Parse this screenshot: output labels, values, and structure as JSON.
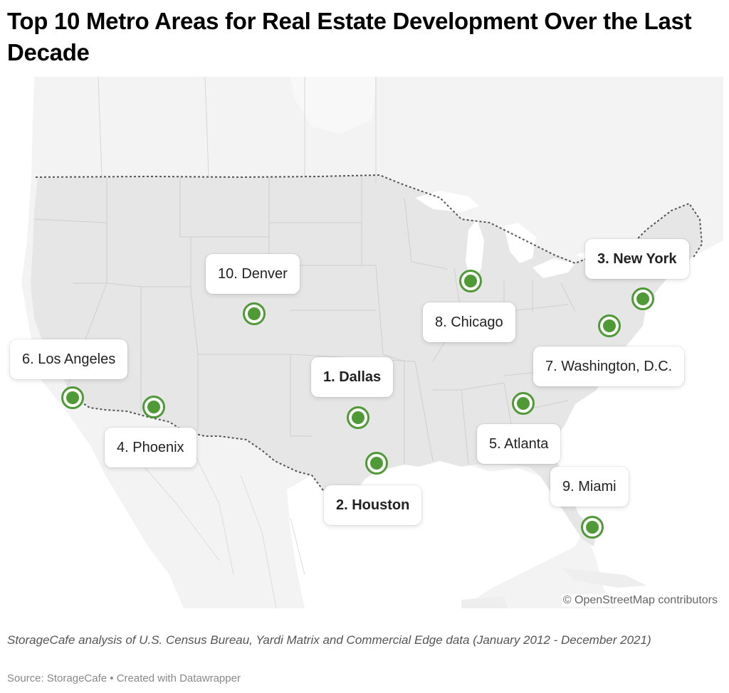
{
  "title": "Top 10 Metro Areas for Real Estate Development Over the Last Decade",
  "notes": "StorageCafe analysis of U.S. Census Bureau, Yardi Matrix and Commercial Edge data (January 2012 - December 2021)",
  "source": {
    "prefix": "Source: ",
    "name": "StorageCafe",
    "separator": " • ",
    "created": "Created with Datawrapper"
  },
  "attribution": "© OpenStreetMap contributors",
  "colors": {
    "marker": "#4e9a35",
    "land_us": "#e6e6e6",
    "land_other": "#f2f2f2",
    "water": "#ffffff",
    "border": "#555555"
  },
  "markers": [
    {
      "rank": 1,
      "label": "1. Dallas",
      "bold": true
    },
    {
      "rank": 2,
      "label": "2. Houston",
      "bold": true
    },
    {
      "rank": 3,
      "label": "3. New York",
      "bold": true
    },
    {
      "rank": 4,
      "label": "4. Phoenix",
      "bold": false
    },
    {
      "rank": 5,
      "label": "5. Atlanta",
      "bold": false
    },
    {
      "rank": 6,
      "label": "6. Los Angeles",
      "bold": false
    },
    {
      "rank": 7,
      "label": "7. Washington, D.C.",
      "bold": false
    },
    {
      "rank": 8,
      "label": "8. Chicago",
      "bold": false
    },
    {
      "rank": 9,
      "label": "9. Miami",
      "bold": false
    },
    {
      "rank": 10,
      "label": "10. Denver",
      "bold": false
    }
  ]
}
